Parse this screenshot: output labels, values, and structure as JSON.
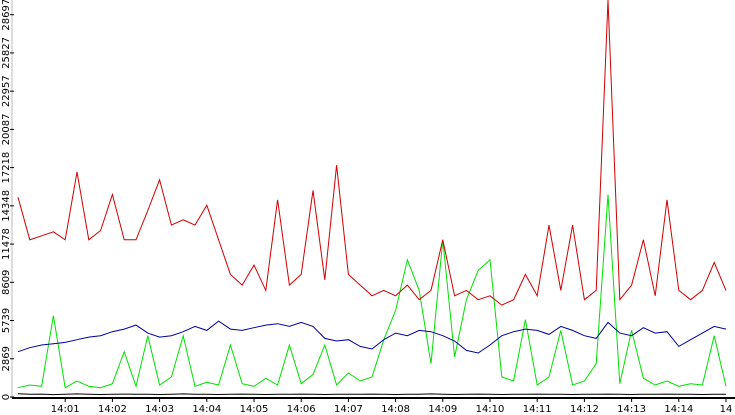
{
  "chart_data": {
    "type": "line",
    "categories": [
      null,
      null,
      null,
      null,
      "14:01",
      null,
      null,
      null,
      "14:02",
      null,
      null,
      null,
      "14:03",
      null,
      null,
      null,
      "14:04",
      null,
      null,
      null,
      "14:05",
      null,
      null,
      null,
      "14:06",
      null,
      null,
      null,
      "14:07",
      null,
      null,
      null,
      "14:08",
      null,
      null,
      null,
      "14:09",
      null,
      null,
      null,
      "14:10",
      null,
      null,
      null,
      "14:11",
      null,
      null,
      null,
      "14:12",
      null,
      null,
      null,
      "14:13",
      null,
      null,
      null,
      "14:14",
      null,
      null,
      null,
      "14"
    ],
    "series": [
      {
        "color": "#000000",
        "values": [
          250,
          200,
          220,
          180,
          200,
          230,
          210,
          190,
          200,
          220,
          210,
          200,
          190,
          210,
          230,
          200,
          210,
          190,
          200,
          220,
          200,
          190,
          210,
          200,
          220,
          210,
          190,
          200,
          210,
          200,
          220,
          200,
          190,
          210,
          200,
          230,
          200,
          190,
          210,
          220,
          200,
          190,
          210,
          200,
          220,
          210,
          200,
          190,
          210,
          200,
          220,
          200,
          190,
          210,
          200,
          220,
          210,
          200,
          190,
          210,
          200
        ]
      },
      {
        "color": "#00e000",
        "values": [
          700,
          900,
          800,
          6100,
          700,
          1200,
          800,
          700,
          1000,
          3400,
          800,
          4600,
          900,
          1500,
          4600,
          800,
          1100,
          900,
          3900,
          1000,
          800,
          1400,
          900,
          3900,
          1000,
          1700,
          3900,
          900,
          1800,
          1200,
          1500,
          4300,
          6500,
          10300,
          8000,
          2500,
          11800,
          3000,
          7300,
          9500,
          10300,
          1500,
          1200,
          5800,
          900,
          1500,
          5000,
          900,
          1200,
          2500,
          15200,
          1000,
          5000,
          1400,
          900,
          1200,
          800,
          1000,
          900,
          4600,
          800
        ]
      },
      {
        "color": "#0000a0",
        "values": [
          3400,
          3700,
          3900,
          4000,
          4100,
          4300,
          4500,
          4600,
          4900,
          5100,
          5400,
          4800,
          4500,
          4600,
          4900,
          5300,
          5000,
          5700,
          5100,
          5000,
          5200,
          5400,
          5500,
          5300,
          5600,
          5300,
          4400,
          4200,
          4300,
          3800,
          3600,
          4300,
          4800,
          4600,
          5000,
          4900,
          4600,
          4200,
          3500,
          3300,
          3900,
          4600,
          4900,
          5100,
          5000,
          4700,
          5300,
          5000,
          4600,
          4400,
          5600,
          4800,
          4600,
          5200,
          4800,
          4900,
          3800,
          4300,
          4800,
          5300,
          5100
        ]
      },
      {
        "color": "#d00000",
        "values": [
          15000,
          11800,
          12100,
          12400,
          11800,
          16900,
          11800,
          12500,
          15200,
          11800,
          11800,
          14000,
          16300,
          12900,
          13300,
          12900,
          14400,
          11800,
          9200,
          8400,
          9900,
          8000,
          14800,
          8400,
          9200,
          15500,
          8800,
          17400,
          9200,
          8400,
          7600,
          8000,
          7600,
          8400,
          7300,
          8000,
          11800,
          7600,
          8000,
          7300,
          7600,
          6900,
          7300,
          9200,
          7600,
          12900,
          8000,
          12900,
          7300,
          8000,
          29800,
          7300,
          8400,
          11800,
          7600,
          14800,
          8000,
          7300,
          8000,
          10100,
          8000
        ]
      }
    ],
    "ylim": [
      0,
      29800
    ],
    "yticks": [
      0,
      2869,
      5739,
      8609,
      11478,
      14348,
      17218,
      20087,
      22957,
      25827,
      28697
    ]
  }
}
